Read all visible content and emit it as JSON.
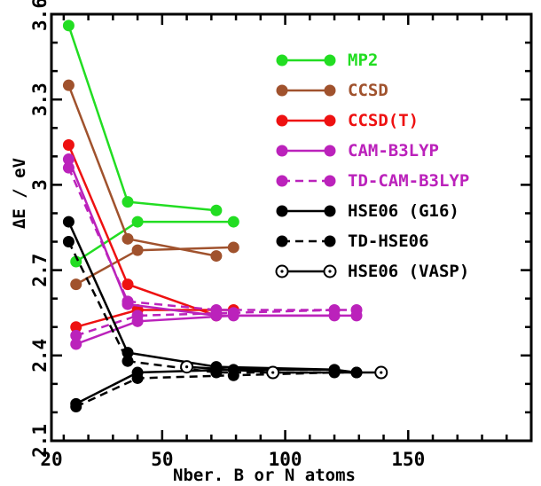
{
  "chart_data": {
    "type": "line",
    "xlabel": "Nber. B or N atoms",
    "ylabel": "ΔE / eV",
    "xlim": [
      20,
      200
    ],
    "ylim": [
      2.1,
      3.6
    ],
    "xticks": [
      20,
      50,
      100,
      150
    ],
    "yticks": [
      2.1,
      2.4,
      2.7,
      3,
      3.3,
      3.6
    ],
    "ytick_labels": [
      "2.1",
      "2.4",
      "2.7",
      "3",
      "3.3",
      "3.6"
    ],
    "grid": false,
    "legend_position": "top-right",
    "series": [
      {
        "name": "MP2",
        "color": "#22dd22",
        "dash": "solid",
        "marker": "filled",
        "x": [
          12,
          15,
          36,
          40,
          72,
          79
        ],
        "y": [
          3.56,
          2.73,
          2.94,
          2.87,
          2.91,
          2.87
        ]
      },
      {
        "name": "CCSD",
        "color": "#a0522d",
        "dash": "solid",
        "marker": "filled",
        "x": [
          12,
          15,
          36,
          40,
          72,
          79
        ],
        "y": [
          3.35,
          2.65,
          2.81,
          2.77,
          2.75,
          2.78
        ]
      },
      {
        "name": "CCSD(T)",
        "color": "#ee1111",
        "dash": "solid",
        "marker": "filled",
        "x": [
          12,
          15,
          36,
          40,
          72,
          79
        ],
        "y": [
          3.14,
          2.5,
          2.65,
          2.56,
          2.54,
          2.56
        ]
      },
      {
        "name": "CAM-B3LYP",
        "color": "#bb22bb",
        "dash": "solid",
        "marker": "filled",
        "x": [
          12,
          15,
          36,
          40,
          72,
          79,
          120,
          129
        ],
        "y": [
          3.09,
          2.44,
          2.58,
          2.52,
          2.54,
          2.54,
          2.54,
          2.54
        ]
      },
      {
        "name": "TD-CAM-B3LYP",
        "color": "#bb22bb",
        "dash": "dashed",
        "marker": "filled",
        "x": [
          12,
          15,
          36,
          40,
          72,
          79,
          120,
          129
        ],
        "y": [
          3.06,
          2.47,
          2.59,
          2.54,
          2.56,
          2.55,
          2.56,
          2.56
        ]
      },
      {
        "name": "HSE06 (G16)",
        "color": "#000000",
        "dash": "solid",
        "marker": "filled",
        "x": [
          12,
          15,
          36,
          40,
          72,
          79,
          120,
          129
        ],
        "y": [
          2.87,
          2.23,
          2.41,
          2.34,
          2.36,
          2.35,
          2.35,
          2.34
        ]
      },
      {
        "name": "TD-HSE06",
        "color": "#000000",
        "dash": "dashed",
        "marker": "filled",
        "x": [
          12,
          15,
          36,
          40,
          72,
          79,
          120,
          129
        ],
        "y": [
          2.8,
          2.22,
          2.38,
          2.32,
          2.34,
          2.33,
          2.34,
          2.34
        ]
      },
      {
        "name": "HSE06 (VASP)",
        "color": "#000000",
        "dash": "solid",
        "marker": "open",
        "x": [
          60,
          95,
          139
        ],
        "y": [
          2.36,
          2.34,
          2.34
        ]
      }
    ]
  }
}
